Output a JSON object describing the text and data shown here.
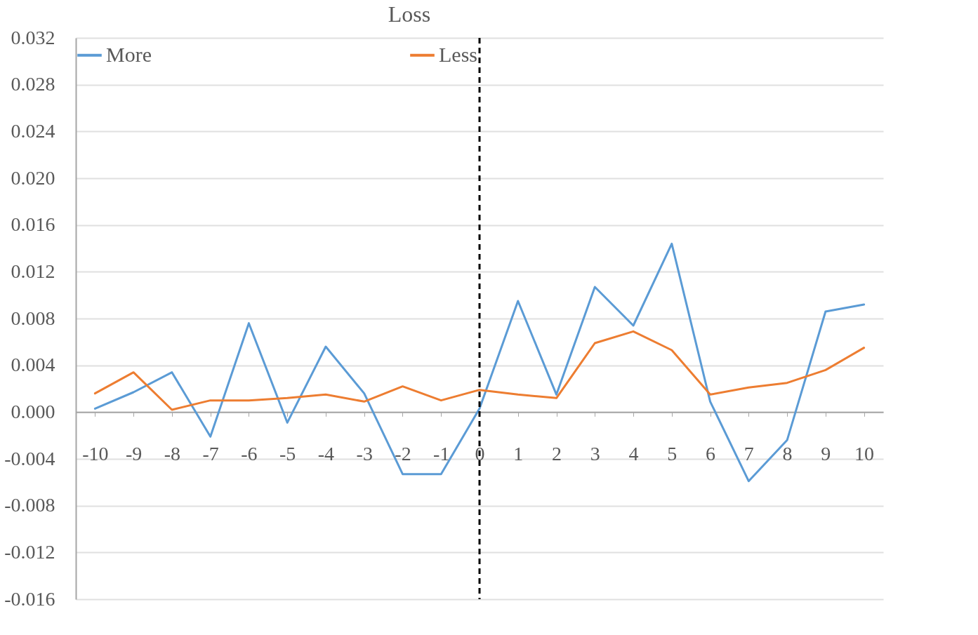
{
  "chart_data": {
    "type": "line",
    "title": "Loss",
    "categories": [
      "-10",
      "-9",
      "-8",
      "-7",
      "-6",
      "-5",
      "-4",
      "-3",
      "-2",
      "-1",
      "0",
      "1",
      "2",
      "3",
      "4",
      "5",
      "6",
      "7",
      "8",
      "9",
      "10"
    ],
    "series": [
      {
        "name": "More",
        "color": "#5b9bd5",
        "values": [
          0.0003,
          0.0017,
          0.0034,
          -0.0021,
          0.0076,
          -0.0009,
          0.0056,
          0.0016,
          -0.0053,
          -0.0053,
          0.0003,
          0.0095,
          0.0015,
          0.0107,
          0.0074,
          0.0144,
          0.0009,
          -0.0059,
          -0.0024,
          0.0086,
          0.0092
        ]
      },
      {
        "name": "Less",
        "color": "#ed7d31",
        "values": [
          0.0016,
          0.0034,
          0.0002,
          0.001,
          0.001,
          0.0012,
          0.0015,
          0.0009,
          0.0022,
          0.001,
          0.0019,
          0.0015,
          0.0012,
          0.0059,
          0.0069,
          0.0053,
          0.0015,
          0.0021,
          0.0025,
          0.0036,
          0.0055
        ]
      }
    ],
    "ylim": [
      -0.016,
      0.032
    ],
    "yticks": [
      {
        "value": -0.016,
        "label": "-0.016"
      },
      {
        "value": -0.012,
        "label": "-0.012"
      },
      {
        "value": -0.008,
        "label": "-0.008"
      },
      {
        "value": -0.004,
        "label": "-0.004"
      },
      {
        "value": 0,
        "label": "0.000"
      },
      {
        "value": 0.004,
        "label": "0.004"
      },
      {
        "value": 0.008,
        "label": "0.008"
      },
      {
        "value": 0.012,
        "label": "0.012"
      },
      {
        "value": 0.016,
        "label": "0.016"
      },
      {
        "value": 0.02,
        "label": "0.020"
      },
      {
        "value": 0.024,
        "label": "0.024"
      },
      {
        "value": 0.028,
        "label": "0.028"
      },
      {
        "value": 0.032,
        "label": "0.032"
      }
    ],
    "ref_lines": [
      {
        "axis": "x",
        "value": "0",
        "color": "#000000",
        "line_style": "dashed"
      }
    ],
    "grid": "y",
    "legend": "top",
    "marker": "none",
    "line_style": "solid"
  }
}
